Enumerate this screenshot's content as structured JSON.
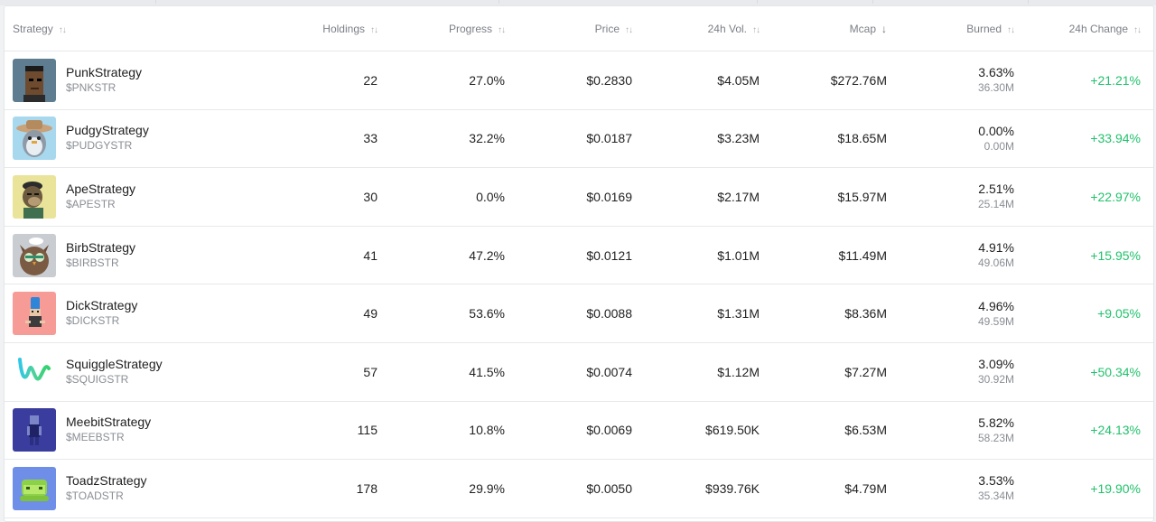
{
  "header": {
    "strategy": "Strategy",
    "holdings": "Holdings",
    "progress": "Progress",
    "price": "Price",
    "volume": "24h Vol.",
    "mcap": "Mcap",
    "burned": "Burned",
    "change": "24h Change"
  },
  "sort_icons": {
    "unsorted": "up-down-arrows-icon",
    "active": "arrow-down-icon",
    "active_column": "mcap"
  },
  "colors": {
    "positive": "#21c26b",
    "muted": "#8a8e94"
  },
  "rows": [
    {
      "name": "PunkStrategy",
      "ticker": "$PNKSTR",
      "holdings": "22",
      "progress": "27.0%",
      "price": "$0.2830",
      "volume": "$4.05M",
      "mcap": "$272.76M",
      "burned_pct": "3.63%",
      "burned_amt": "36.30M",
      "change": "+21.21%",
      "icon": "cryptopunk-avatar-icon"
    },
    {
      "name": "PudgyStrategy",
      "ticker": "$PUDGYSTR",
      "holdings": "33",
      "progress": "32.2%",
      "price": "$0.0187",
      "volume": "$3.23M",
      "mcap": "$18.65M",
      "burned_pct": "0.00%",
      "burned_amt": "0.00M",
      "change": "+33.94%",
      "icon": "pudgy-penguin-avatar-icon"
    },
    {
      "name": "ApeStrategy",
      "ticker": "$APESTR",
      "holdings": "30",
      "progress": "0.0%",
      "price": "$0.0169",
      "volume": "$2.17M",
      "mcap": "$15.97M",
      "burned_pct": "2.51%",
      "burned_amt": "25.14M",
      "change": "+22.97%",
      "icon": "bored-ape-avatar-icon"
    },
    {
      "name": "BirbStrategy",
      "ticker": "$BIRBSTR",
      "holdings": "41",
      "progress": "47.2%",
      "price": "$0.0121",
      "volume": "$1.01M",
      "mcap": "$11.49M",
      "burned_pct": "4.91%",
      "burned_amt": "49.06M",
      "change": "+15.95%",
      "icon": "owl-avatar-icon"
    },
    {
      "name": "DickStrategy",
      "ticker": "$DICKSTR",
      "holdings": "49",
      "progress": "53.6%",
      "price": "$0.0088",
      "volume": "$1.31M",
      "mcap": "$8.36M",
      "burned_pct": "4.96%",
      "burned_amt": "49.59M",
      "change": "+9.05%",
      "icon": "pixel-character-avatar-icon"
    },
    {
      "name": "SquiggleStrategy",
      "ticker": "$SQUIGSTR",
      "holdings": "57",
      "progress": "41.5%",
      "price": "$0.0074",
      "volume": "$1.12M",
      "mcap": "$7.27M",
      "burned_pct": "3.09%",
      "burned_amt": "30.92M",
      "change": "+50.34%",
      "icon": "squiggle-avatar-icon"
    },
    {
      "name": "MeebitStrategy",
      "ticker": "$MEEBSTR",
      "holdings": "115",
      "progress": "10.8%",
      "price": "$0.0069",
      "volume": "$619.50K",
      "mcap": "$6.53M",
      "burned_pct": "5.82%",
      "burned_amt": "58.23M",
      "change": "+24.13%",
      "icon": "meebit-avatar-icon"
    },
    {
      "name": "ToadzStrategy",
      "ticker": "$TOADSTR",
      "holdings": "178",
      "progress": "29.9%",
      "price": "$0.0050",
      "volume": "$939.76K",
      "mcap": "$4.79M",
      "burned_pct": "3.53%",
      "burned_amt": "35.34M",
      "change": "+19.90%",
      "icon": "toad-avatar-icon"
    }
  ]
}
